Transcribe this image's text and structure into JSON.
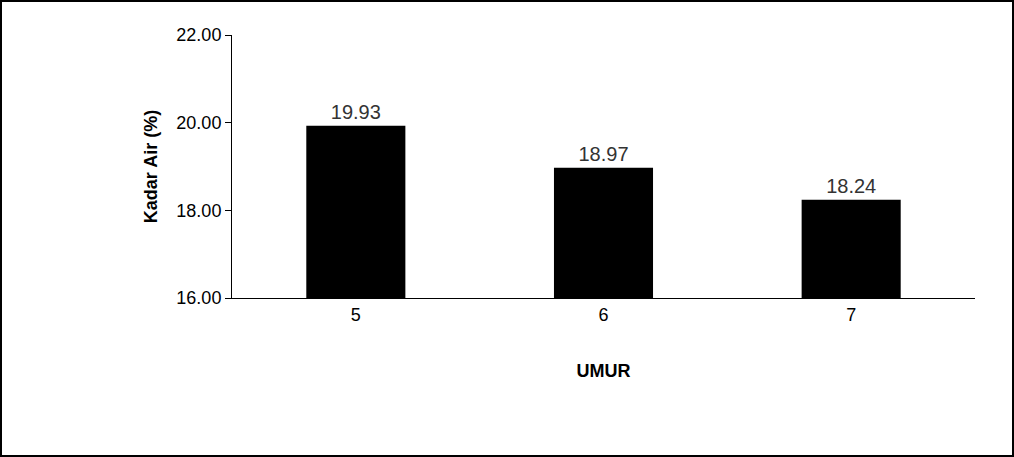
{
  "chart_data": {
    "type": "bar",
    "x_label": "UMUR",
    "y_label": "Kadar Air (%)",
    "categories": [
      "5",
      "6",
      "7"
    ],
    "values": [
      19.93,
      18.97,
      18.24
    ],
    "color": "#000000",
    "ylim": [
      16,
      22
    ],
    "yticks": [
      {
        "value": 16,
        "label": "16.00"
      },
      {
        "value": 18,
        "label": "18.00"
      },
      {
        "value": 20,
        "label": "20.00"
      },
      {
        "value": 22,
        "label": "22.00"
      }
    ],
    "grid": false,
    "data_labels": true
  }
}
